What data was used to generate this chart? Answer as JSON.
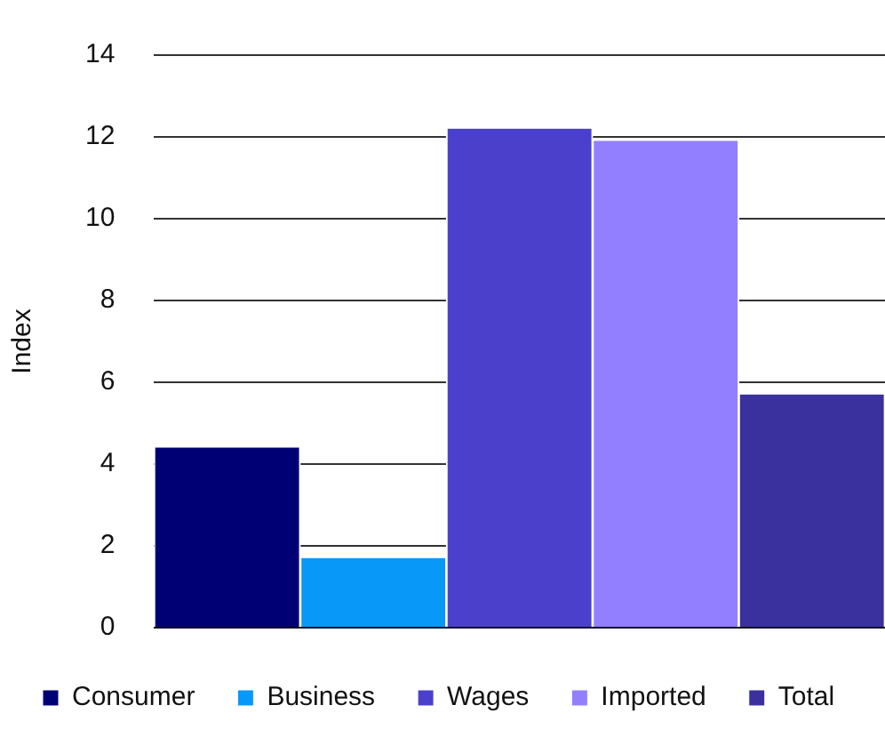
{
  "chart_data": {
    "type": "bar",
    "ylabel": "Index",
    "categories": [
      null
    ],
    "ylim": [
      0,
      14
    ],
    "yticks": [
      0,
      2,
      4,
      6,
      8,
      10,
      12,
      14
    ],
    "grid": "y",
    "legend": "bottom",
    "series": [
      {
        "name": "Consumer",
        "color": "#000075",
        "values": [
          4.4
        ]
      },
      {
        "name": "Business",
        "color": "#0898f8",
        "values": [
          1.7
        ]
      },
      {
        "name": "Wages",
        "color": "#4a40cc",
        "values": [
          12.2
        ]
      },
      {
        "name": "Imported",
        "color": "#917fff",
        "values": [
          11.9
        ]
      },
      {
        "name": "Total",
        "color": "#3a319e",
        "values": [
          5.7
        ]
      }
    ]
  }
}
